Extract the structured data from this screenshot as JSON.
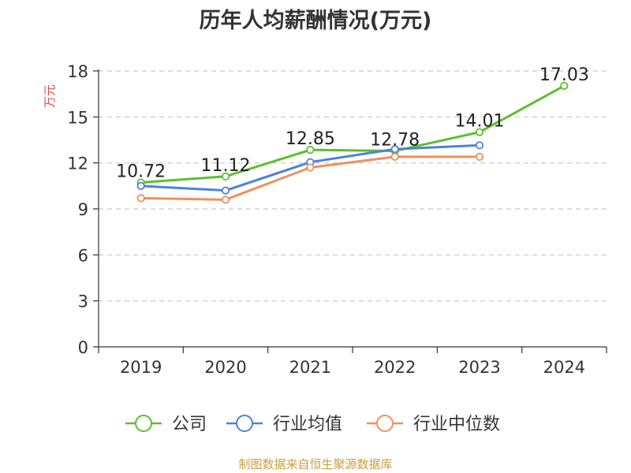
{
  "chart_data": {
    "type": "line",
    "title": "历年人均薪酬情况(万元)",
    "ylabel": "万元",
    "xlabel": "",
    "categories": [
      "2019",
      "2020",
      "2021",
      "2022",
      "2023",
      "2024"
    ],
    "yticks": [
      0,
      3,
      6,
      9,
      12,
      15,
      18
    ],
    "ylim": [
      0,
      18
    ],
    "grid": true,
    "legend_position": "bottom",
    "series": [
      {
        "name": "公司",
        "color": "#5ac02c",
        "values": [
          10.72,
          11.12,
          12.85,
          12.78,
          14.01,
          17.03
        ],
        "labels": [
          "10.72",
          "11.12",
          "12.85",
          "12.78",
          "14.01",
          "17.03"
        ]
      },
      {
        "name": "行业均值",
        "color": "#4f82d6",
        "values": [
          10.5,
          10.2,
          12.05,
          12.9,
          13.15,
          null
        ]
      },
      {
        "name": "行业中位数",
        "color": "#f0905a",
        "values": [
          9.7,
          9.6,
          11.7,
          12.4,
          12.4,
          null
        ]
      }
    ]
  },
  "footer": {
    "source": "制图数据来自恒生聚源数据库"
  }
}
